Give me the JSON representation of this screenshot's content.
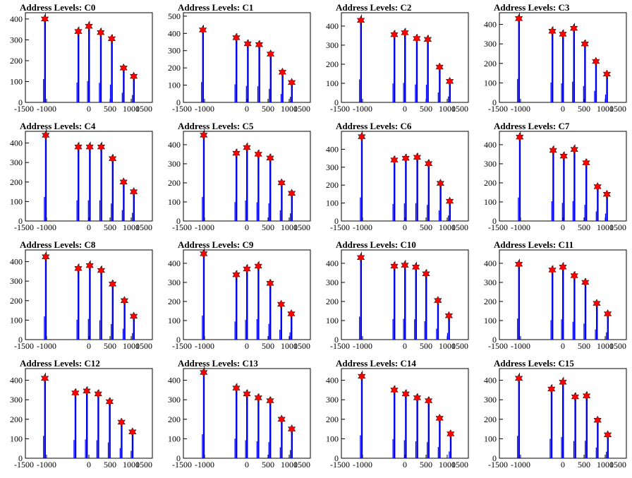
{
  "chart_data": [
    {
      "type": "bar",
      "title": "Address Levels: C0",
      "x_ticks": [
        -1500,
        -1000,
        0,
        500,
        1000,
        1500
      ],
      "y_ticks": [
        0,
        100,
        200,
        300,
        400
      ],
      "xlim": [
        -1500,
        1500
      ],
      "ylim": [
        0,
        430
      ],
      "series_color": "#0000ff",
      "peak_marker_color": "#ff0000",
      "peaks": [
        {
          "x": -1040,
          "y": 400
        },
        {
          "x": -250,
          "y": 340
        },
        {
          "x": 0,
          "y": 365
        },
        {
          "x": 280,
          "y": 335
        },
        {
          "x": 540,
          "y": 305
        },
        {
          "x": 820,
          "y": 165
        },
        {
          "x": 1060,
          "y": 125
        }
      ]
    },
    {
      "type": "bar",
      "title": "Address Levels: C1",
      "x_ticks": [
        -1500,
        -1000,
        0,
        500,
        1000,
        1500
      ],
      "y_ticks": [
        0,
        100,
        200,
        300,
        400,
        500
      ],
      "xlim": [
        -1500,
        1500
      ],
      "ylim": [
        0,
        520
      ],
      "series_color": "#0000ff",
      "peak_marker_color": "#ff0000",
      "peaks": [
        {
          "x": -1040,
          "y": 420
        },
        {
          "x": -250,
          "y": 375
        },
        {
          "x": 20,
          "y": 340
        },
        {
          "x": 290,
          "y": 335
        },
        {
          "x": 560,
          "y": 280
        },
        {
          "x": 840,
          "y": 175
        },
        {
          "x": 1060,
          "y": 115
        }
      ]
    },
    {
      "type": "bar",
      "title": "Address Levels: C2",
      "x_ticks": [
        -1500,
        -1000,
        0,
        500,
        1000,
        1500
      ],
      "y_ticks": [
        0,
        100,
        200,
        300,
        400
      ],
      "xlim": [
        -1500,
        1500
      ],
      "ylim": [
        0,
        470
      ],
      "series_color": "#0000ff",
      "peak_marker_color": "#ff0000",
      "peaks": [
        {
          "x": -1040,
          "y": 430
        },
        {
          "x": -250,
          "y": 355
        },
        {
          "x": 0,
          "y": 365
        },
        {
          "x": 280,
          "y": 335
        },
        {
          "x": 540,
          "y": 330
        },
        {
          "x": 820,
          "y": 185
        },
        {
          "x": 1060,
          "y": 110
        }
      ]
    },
    {
      "type": "bar",
      "title": "Address Levels: C3",
      "x_ticks": [
        -1500,
        -1000,
        0,
        500,
        1000,
        1500
      ],
      "y_ticks": [
        0,
        100,
        200,
        300,
        400
      ],
      "xlim": [
        -1500,
        1500
      ],
      "ylim": [
        0,
        460
      ],
      "series_color": "#0000ff",
      "peak_marker_color": "#ff0000",
      "peaks": [
        {
          "x": -1040,
          "y": 430
        },
        {
          "x": -250,
          "y": 365
        },
        {
          "x": 0,
          "y": 350
        },
        {
          "x": 260,
          "y": 380
        },
        {
          "x": 520,
          "y": 300
        },
        {
          "x": 780,
          "y": 210
        },
        {
          "x": 1040,
          "y": 145
        }
      ]
    },
    {
      "type": "bar",
      "title": "Address Levels: C4",
      "x_ticks": [
        -1500,
        -1000,
        0,
        500,
        1000,
        1500
      ],
      "y_ticks": [
        0,
        100,
        200,
        300,
        400
      ],
      "xlim": [
        -1500,
        1500
      ],
      "ylim": [
        0,
        460
      ],
      "series_color": "#0000ff",
      "peak_marker_color": "#ff0000",
      "peaks": [
        {
          "x": -1020,
          "y": 440
        },
        {
          "x": -250,
          "y": 380
        },
        {
          "x": 20,
          "y": 380
        },
        {
          "x": 290,
          "y": 380
        },
        {
          "x": 560,
          "y": 320
        },
        {
          "x": 820,
          "y": 200
        },
        {
          "x": 1060,
          "y": 150
        }
      ]
    },
    {
      "type": "bar",
      "title": "Address Levels: C5",
      "x_ticks": [
        -1500,
        -1000,
        0,
        500,
        1000,
        1500
      ],
      "y_ticks": [
        0,
        100,
        200,
        300,
        400
      ],
      "xlim": [
        -1500,
        1500
      ],
      "ylim": [
        0,
        470
      ],
      "series_color": "#0000ff",
      "peak_marker_color": "#ff0000",
      "peaks": [
        {
          "x": -1020,
          "y": 450
        },
        {
          "x": -250,
          "y": 355
        },
        {
          "x": 0,
          "y": 385
        },
        {
          "x": 270,
          "y": 350
        },
        {
          "x": 550,
          "y": 330
        },
        {
          "x": 820,
          "y": 200
        },
        {
          "x": 1060,
          "y": 145
        }
      ]
    },
    {
      "type": "bar",
      "title": "Address Levels: C6",
      "x_ticks": [
        -1500,
        -1000,
        0,
        500,
        1000,
        1500
      ],
      "y_ticks": [
        0,
        100,
        200,
        300,
        400
      ],
      "xlim": [
        -1500,
        1500
      ],
      "ylim": [
        0,
        500
      ],
      "series_color": "#0000ff",
      "peak_marker_color": "#ff0000",
      "peaks": [
        {
          "x": -1020,
          "y": 470
        },
        {
          "x": -250,
          "y": 340
        },
        {
          "x": 20,
          "y": 350
        },
        {
          "x": 290,
          "y": 355
        },
        {
          "x": 560,
          "y": 320
        },
        {
          "x": 840,
          "y": 210
        },
        {
          "x": 1060,
          "y": 110
        }
      ]
    },
    {
      "type": "bar",
      "title": "Address Levels: C7",
      "x_ticks": [
        -1500,
        -1000,
        0,
        500,
        1000,
        1500
      ],
      "y_ticks": [
        0,
        100,
        200,
        300,
        400
      ],
      "xlim": [
        -1500,
        1500
      ],
      "ylim": [
        0,
        470
      ],
      "series_color": "#0000ff",
      "peak_marker_color": "#ff0000",
      "peaks": [
        {
          "x": -1020,
          "y": 440
        },
        {
          "x": -230,
          "y": 370
        },
        {
          "x": 20,
          "y": 340
        },
        {
          "x": 270,
          "y": 375
        },
        {
          "x": 550,
          "y": 305
        },
        {
          "x": 820,
          "y": 180
        },
        {
          "x": 1040,
          "y": 140
        }
      ]
    },
    {
      "type": "bar",
      "title": "Address Levels: C8",
      "x_ticks": [
        -1500,
        -1000,
        0,
        500,
        1000,
        1500
      ],
      "y_ticks": [
        0,
        100,
        200,
        300,
        400
      ],
      "xlim": [
        -1500,
        1500
      ],
      "ylim": [
        0,
        460
      ],
      "series_color": "#0000ff",
      "peak_marker_color": "#ff0000",
      "peaks": [
        {
          "x": -1020,
          "y": 425
        },
        {
          "x": -250,
          "y": 365
        },
        {
          "x": 20,
          "y": 380
        },
        {
          "x": 290,
          "y": 355
        },
        {
          "x": 560,
          "y": 285
        },
        {
          "x": 840,
          "y": 200
        },
        {
          "x": 1060,
          "y": 120
        }
      ]
    },
    {
      "type": "bar",
      "title": "Address Levels: C9",
      "x_ticks": [
        -1500,
        -1000,
        0,
        500,
        1000,
        1500
      ],
      "y_ticks": [
        0,
        100,
        200,
        300,
        400
      ],
      "xlim": [
        -1500,
        1500
      ],
      "ylim": [
        0,
        470
      ],
      "series_color": "#0000ff",
      "peak_marker_color": "#ff0000",
      "peaks": [
        {
          "x": -1020,
          "y": 450
        },
        {
          "x": -250,
          "y": 340
        },
        {
          "x": 0,
          "y": 370
        },
        {
          "x": 270,
          "y": 385
        },
        {
          "x": 550,
          "y": 295
        },
        {
          "x": 810,
          "y": 185
        },
        {
          "x": 1050,
          "y": 135
        }
      ]
    },
    {
      "type": "bar",
      "title": "Address Levels: C10",
      "x_ticks": [
        -1500,
        -1000,
        0,
        500,
        1000,
        1500
      ],
      "y_ticks": [
        0,
        100,
        200,
        300,
        400
      ],
      "xlim": [
        -1500,
        1500
      ],
      "ylim": [
        0,
        470
      ],
      "series_color": "#0000ff",
      "peak_marker_color": "#ff0000",
      "peaks": [
        {
          "x": -1040,
          "y": 430
        },
        {
          "x": -250,
          "y": 385
        },
        {
          "x": 0,
          "y": 390
        },
        {
          "x": 260,
          "y": 380
        },
        {
          "x": 500,
          "y": 345
        },
        {
          "x": 780,
          "y": 205
        },
        {
          "x": 1040,
          "y": 125
        }
      ]
    },
    {
      "type": "bar",
      "title": "Address Levels: C11",
      "x_ticks": [
        -1500,
        -1000,
        0,
        500,
        1000,
        1500
      ],
      "y_ticks": [
        0,
        100,
        200,
        300,
        400
      ],
      "xlim": [
        -1500,
        1500
      ],
      "ylim": [
        0,
        470
      ],
      "series_color": "#0000ff",
      "peak_marker_color": "#ff0000",
      "peaks": [
        {
          "x": -1040,
          "y": 395
        },
        {
          "x": -250,
          "y": 365
        },
        {
          "x": 0,
          "y": 380
        },
        {
          "x": 270,
          "y": 335
        },
        {
          "x": 530,
          "y": 300
        },
        {
          "x": 800,
          "y": 190
        },
        {
          "x": 1060,
          "y": 135
        }
      ]
    },
    {
      "type": "bar",
      "title": "Address Levels: C12",
      "x_ticks": [
        -1500,
        -1000,
        0,
        500,
        1000,
        1500
      ],
      "y_ticks": [
        0,
        100,
        200,
        300,
        400
      ],
      "xlim": [
        -1500,
        1500
      ],
      "ylim": [
        0,
        460
      ],
      "series_color": "#0000ff",
      "peak_marker_color": "#ff0000",
      "peaks": [
        {
          "x": -1040,
          "y": 410
        },
        {
          "x": -320,
          "y": 335
        },
        {
          "x": -50,
          "y": 345
        },
        {
          "x": 220,
          "y": 330
        },
        {
          "x": 490,
          "y": 290
        },
        {
          "x": 770,
          "y": 185
        },
        {
          "x": 1030,
          "y": 135
        }
      ]
    },
    {
      "type": "bar",
      "title": "Address Levels: C13",
      "x_ticks": [
        -1500,
        -1000,
        0,
        500,
        1000,
        1500
      ],
      "y_ticks": [
        0,
        100,
        200,
        300,
        400
      ],
      "xlim": [
        -1500,
        1500
      ],
      "ylim": [
        0,
        460
      ],
      "series_color": "#0000ff",
      "peak_marker_color": "#ff0000",
      "peaks": [
        {
          "x": -1020,
          "y": 440
        },
        {
          "x": -250,
          "y": 360
        },
        {
          "x": 0,
          "y": 330
        },
        {
          "x": 270,
          "y": 310
        },
        {
          "x": 550,
          "y": 295
        },
        {
          "x": 820,
          "y": 200
        },
        {
          "x": 1060,
          "y": 150
        }
      ]
    },
    {
      "type": "bar",
      "title": "Address Levels: C14",
      "x_ticks": [
        -1500,
        -1000,
        0,
        500,
        1000,
        1500
      ],
      "y_ticks": [
        0,
        100,
        200,
        300,
        400
      ],
      "xlim": [
        -1500,
        1500
      ],
      "ylim": [
        0,
        460
      ],
      "series_color": "#0000ff",
      "peak_marker_color": "#ff0000",
      "peaks": [
        {
          "x": -1020,
          "y": 420
        },
        {
          "x": -250,
          "y": 350
        },
        {
          "x": 20,
          "y": 330
        },
        {
          "x": 290,
          "y": 310
        },
        {
          "x": 560,
          "y": 295
        },
        {
          "x": 820,
          "y": 205
        },
        {
          "x": 1080,
          "y": 125
        }
      ]
    },
    {
      "type": "bar",
      "title": "Address Levels: C15",
      "x_ticks": [
        -1500,
        -1000,
        0,
        500,
        1000,
        1500
      ],
      "y_ticks": [
        0,
        100,
        200,
        300,
        400
      ],
      "xlim": [
        -1500,
        1500
      ],
      "ylim": [
        0,
        460
      ],
      "series_color": "#0000ff",
      "peak_marker_color": "#ff0000",
      "peaks": [
        {
          "x": -1040,
          "y": 410
        },
        {
          "x": -270,
          "y": 355
        },
        {
          "x": 0,
          "y": 390
        },
        {
          "x": 290,
          "y": 315
        },
        {
          "x": 560,
          "y": 320
        },
        {
          "x": 820,
          "y": 195
        },
        {
          "x": 1060,
          "y": 120
        }
      ]
    }
  ]
}
